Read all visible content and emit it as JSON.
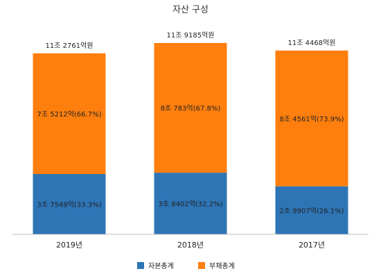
{
  "colors": {
    "equity": "#2e75b6",
    "liability": "#ff7f0e",
    "axis": "#bfbfbf"
  },
  "chart_data": {
    "type": "bar",
    "stacked": true,
    "title": "자산 구성",
    "categories": [
      "2019년",
      "2018년",
      "2017년"
    ],
    "series": [
      {
        "name": "자본총계",
        "values": [
          3.7549,
          3.8402,
          2.9907
        ],
        "labels": [
          "3조 7549억(33.3%)",
          "3조 8402억(32.2%)",
          "2조 9907억(26.1%)"
        ]
      },
      {
        "name": "부채총계",
        "values": [
          7.5212,
          8.0783,
          8.4561
        ],
        "labels": [
          "7조 5212억(66.7%)",
          "8조 783억(67.8%)",
          "8조 4561억(73.9%)"
        ]
      }
    ],
    "totals": [
      "11조 2761억원",
      "11조 9185억원",
      "11조 4468억원"
    ],
    "legend_position": "bottom",
    "grid": false
  }
}
